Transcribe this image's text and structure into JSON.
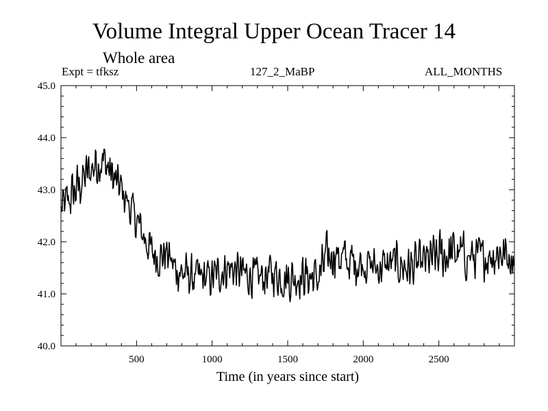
{
  "chart_data": {
    "type": "line",
    "title": "Volume Integral Upper Ocean Tracer 14",
    "subtitle": "Whole area",
    "experiment": "Expt = tfksz",
    "run_label": "127_2_MaBP",
    "months_label": "ALL_MONTHS",
    "xlabel": "Time (in years since start)",
    "ylabel": "",
    "xlim": [
      0,
      3000
    ],
    "ylim": [
      40.0,
      45.0
    ],
    "xticks": [
      500,
      1000,
      1500,
      2000,
      2500
    ],
    "xtick_labels": [
      "500",
      "1000",
      "1500",
      "2000",
      "2500"
    ],
    "yticks": [
      40.0,
      41.0,
      42.0,
      43.0,
      44.0,
      45.0
    ],
    "ytick_labels": [
      "40.0",
      "41.0",
      "42.0",
      "43.0",
      "44.0",
      "45.0"
    ],
    "series": [
      {
        "name": "Tracer 14",
        "x": [
          0,
          50,
          100,
          150,
          200,
          250,
          300,
          350,
          400,
          450,
          500,
          550,
          600,
          650,
          700,
          750,
          800,
          900,
          1000,
          1100,
          1200,
          1300,
          1400,
          1500,
          1600,
          1700,
          1750,
          1800,
          1900,
          2000,
          2100,
          2200,
          2300,
          2400,
          2500,
          2600,
          2700,
          2800,
          2900,
          3000
        ],
        "y": [
          42.6,
          42.8,
          43.0,
          43.2,
          43.4,
          43.6,
          43.5,
          43.2,
          43.0,
          42.7,
          42.4,
          42.1,
          41.8,
          41.7,
          41.8,
          41.5,
          41.4,
          41.3,
          41.3,
          41.5,
          41.4,
          41.3,
          41.4,
          41.3,
          41.35,
          41.3,
          41.6,
          41.8,
          41.6,
          41.6,
          41.5,
          41.6,
          41.5,
          41.6,
          41.7,
          41.8,
          41.7,
          41.7,
          41.8,
          41.7
        ],
        "amplitude": [
          0.3,
          0.35,
          0.35,
          0.35,
          0.35,
          0.4,
          0.35,
          0.3,
          0.3,
          0.3,
          0.3,
          0.3,
          0.3,
          0.3,
          0.3,
          0.3,
          0.3,
          0.3,
          0.3,
          0.3,
          0.3,
          0.3,
          0.3,
          0.35,
          0.3,
          0.35,
          0.4,
          0.35,
          0.35,
          0.3,
          0.3,
          0.3,
          0.35,
          0.3,
          0.4,
          0.35,
          0.35,
          0.3,
          0.35,
          0.3
        ]
      }
    ],
    "grid": false,
    "colors": {
      "line": "#000000",
      "axis": "#000000",
      "background": "#ffffff"
    }
  }
}
